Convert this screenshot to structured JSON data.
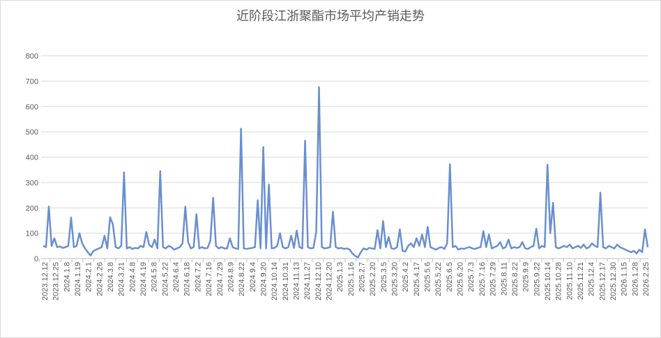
{
  "chart_data": {
    "type": "line",
    "title": "近阶段江浙聚酯市场平均产销走势",
    "xlabel": "",
    "ylabel": "",
    "ylim": [
      0,
      800
    ],
    "yticks": [
      0,
      100,
      200,
      300,
      400,
      500,
      600,
      700,
      800
    ],
    "grid": true,
    "line_color": "#6a8fd0",
    "x_tick_labels": [
      "2023.12.12",
      "2023.12.25",
      "2024.1.8",
      "2024.1.19",
      "2024.2.1",
      "2024.2.26",
      "2024.3.8",
      "2024.3.21",
      "2024.4.8",
      "2024.4.19",
      "2024.5.8",
      "2024.5.22",
      "2024.6.4",
      "2024.6.18",
      "2024.7.2",
      "2024.7.16",
      "2024.7.29",
      "2024.8.9",
      "2024.8.22",
      "2024.9.4",
      "2024.9.20",
      "2024.10.14",
      "2024.10.31",
      "2024.11.13",
      "2024.11.27",
      "2024.12.10",
      "2024.12.20",
      "2025.1.3",
      "2025.1.16",
      "2025.2.7",
      "2025.2.20",
      "2025.3.5",
      "2025.3.20",
      "2025.4.2",
      "2025.4.17",
      "2025.5.6",
      "2025.5.22",
      "2025.6.5",
      "2025.6.20",
      "2025.7.3",
      "2025.7.16",
      "2025.7.29",
      "2025.8.11",
      "2025.8.22",
      "2025.9.9",
      "2025.9.22",
      "2025.10.14",
      "2025.10.28",
      "2025.11.10",
      "2025.11.21",
      "2025.12.4",
      "2025.12.17",
      "2025.12.30",
      "2026.1.15",
      "2026.1.28",
      "2026.2.25"
    ],
    "series": [
      {
        "name": "平均产销",
        "values": [
          50,
          45,
          205,
          50,
          80,
          45,
          48,
          42,
          45,
          50,
          162,
          45,
          50,
          100,
          60,
          40,
          25,
          12,
          30,
          35,
          40,
          45,
          90,
          40,
          163,
          135,
          45,
          40,
          50,
          340,
          40,
          45,
          38,
          42,
          40,
          50,
          45,
          105,
          55,
          45,
          75,
          40,
          345,
          45,
          40,
          50,
          45,
          35,
          40,
          45,
          60,
          205,
          65,
          40,
          45,
          175,
          40,
          45,
          40,
          42,
          70,
          240,
          50,
          40,
          45,
          40,
          40,
          80,
          45,
          40,
          38,
          512,
          40,
          38,
          40,
          42,
          45,
          230,
          40,
          440,
          40,
          292,
          40,
          42,
          50,
          100,
          45,
          40,
          45,
          90,
          42,
          110,
          45,
          40,
          465,
          45,
          40,
          42,
          105,
          676,
          45,
          40,
          42,
          45,
          185,
          45,
          40,
          42,
          38,
          40,
          35,
          20,
          10,
          5,
          25,
          40,
          35,
          42,
          40,
          38,
          112,
          40,
          148,
          45,
          85,
          40,
          38,
          45,
          115,
          30,
          28,
          50,
          60,
          45,
          80,
          50,
          95,
          45,
          125,
          45,
          40,
          35,
          42,
          45,
          38,
          60,
          372,
          45,
          50,
          35,
          40,
          38,
          42,
          45,
          40,
          38,
          42,
          45,
          108,
          45,
          95,
          40,
          45,
          50,
          65,
          40,
          45,
          75,
          40,
          45,
          42,
          45,
          65,
          40,
          38,
          45,
          50,
          118,
          40,
          50,
          45,
          370,
          100,
          220,
          45,
          40,
          45,
          50,
          45,
          55,
          40,
          45,
          50,
          42,
          55,
          40,
          45,
          60,
          50,
          45,
          260,
          45,
          40,
          50,
          45,
          40,
          55,
          45,
          40,
          35,
          30,
          25,
          30,
          20,
          35,
          25,
          115,
          45
        ]
      }
    ]
  }
}
